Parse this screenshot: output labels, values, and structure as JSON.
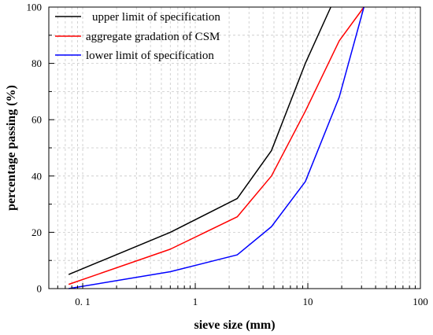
{
  "chart_data": {
    "type": "line",
    "xlabel": "sieve size (mm)",
    "ylabel": "percentage passing (%)",
    "xscale": "log",
    "xlim": [
      0.05,
      100
    ],
    "ylim": [
      0,
      100
    ],
    "xticks": [
      0.1,
      1,
      10,
      100
    ],
    "xtick_labels": [
      "0. 1",
      "1",
      "10",
      "100"
    ],
    "yticks": [
      0,
      20,
      40,
      60,
      80,
      100
    ],
    "ytick_labels": [
      "0",
      "20",
      "40",
      "60",
      "80",
      "100"
    ],
    "grid": true,
    "legend_position": "top-left",
    "series": [
      {
        "name": "upper limit of specification",
        "color": "#000000",
        "x": [
          0.075,
          0.6,
          2.36,
          4.75,
          9.5,
          16
        ],
        "y": [
          5,
          20,
          32,
          49,
          80,
          100
        ]
      },
      {
        "name": "aggregate gradation of CSM",
        "color": "#ff0000",
        "x": [
          0.075,
          0.6,
          2.36,
          4.75,
          9.5,
          19,
          31.5
        ],
        "y": [
          1.5,
          14,
          25.5,
          40,
          63,
          88,
          100
        ]
      },
      {
        "name": "lower limit of specification",
        "color": "#0000ff",
        "x": [
          0.075,
          0.6,
          2.36,
          4.75,
          9.5,
          19,
          31.5
        ],
        "y": [
          0,
          6,
          12,
          22,
          38,
          68,
          100
        ]
      }
    ]
  }
}
